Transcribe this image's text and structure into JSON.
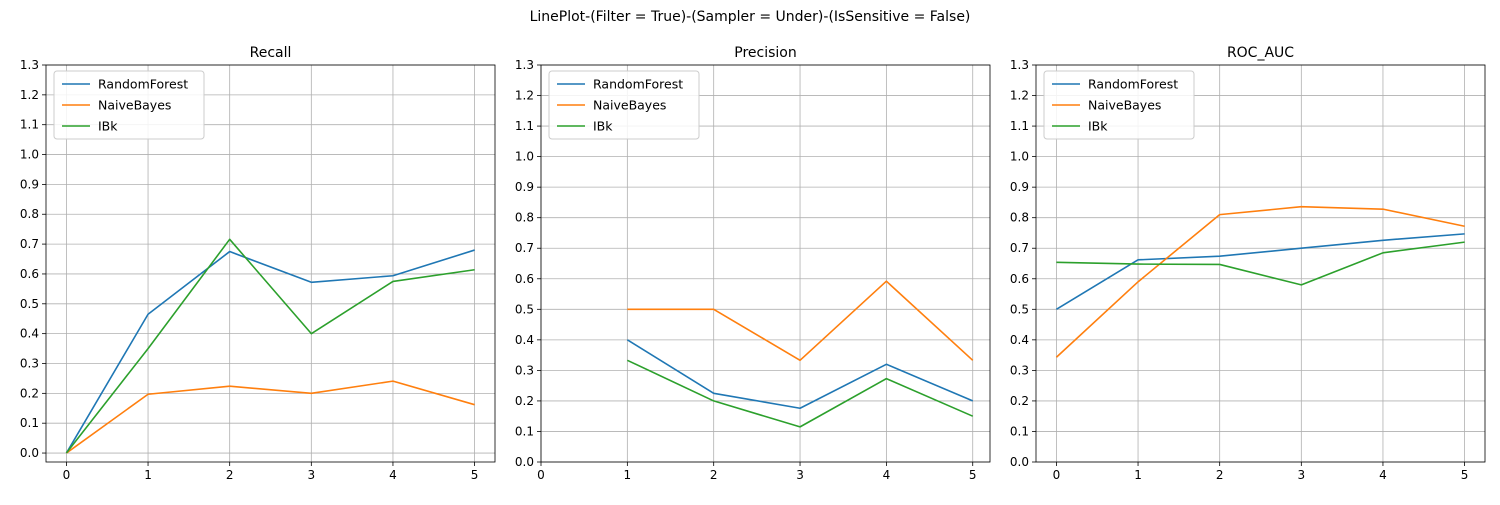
{
  "suptitle": "LinePlot-(Filter = True)-(Sampler = Under)-(IsSensitive = False)",
  "colors": {
    "RandomForest": "#1f77b4",
    "NaiveBayes": "#ff7f0e",
    "IBk": "#2ca02c",
    "grid": "#b0b0b0",
    "axis": "#000000"
  },
  "chart_data": [
    {
      "type": "line",
      "title": "Recall",
      "xlim": [
        -0.25,
        5.25
      ],
      "ylim": [
        -0.03,
        1.3
      ],
      "x_ticks": [
        "0",
        "1",
        "2",
        "3",
        "4",
        "5"
      ],
      "y_ticks": [
        "0.0",
        "0.1",
        "0.2",
        "0.3",
        "0.4",
        "0.5",
        "0.6",
        "0.7",
        "0.8",
        "0.9",
        "1.0",
        "1.1",
        "1.2",
        "1.3"
      ],
      "grid": true,
      "legend": "upper-left",
      "series": [
        {
          "name": "RandomForest",
          "x": [
            0,
            1,
            2,
            3,
            4,
            5
          ],
          "values": [
            0.0,
            0.465,
            0.675,
            0.572,
            0.594,
            0.68
          ]
        },
        {
          "name": "NaiveBayes",
          "x": [
            0,
            1,
            2,
            3,
            4,
            5
          ],
          "values": [
            0.0,
            0.197,
            0.224,
            0.2,
            0.241,
            0.162
          ]
        },
        {
          "name": "IBk",
          "x": [
            0,
            1,
            2,
            3,
            4,
            5
          ],
          "values": [
            0.0,
            0.35,
            0.716,
            0.4,
            0.575,
            0.614
          ]
        }
      ]
    },
    {
      "type": "line",
      "title": "Precision",
      "xlim": [
        0,
        5.2
      ],
      "ylim": [
        0,
        1.3
      ],
      "x_ticks": [
        "0",
        "1",
        "2",
        "3",
        "4",
        "5"
      ],
      "y_ticks": [
        "0.0",
        "0.1",
        "0.2",
        "0.3",
        "0.4",
        "0.5",
        "0.6",
        "0.7",
        "0.8",
        "0.9",
        "1.0",
        "1.1",
        "1.2",
        "1.3"
      ],
      "grid": true,
      "legend": "upper-left",
      "series": [
        {
          "name": "RandomForest",
          "x": [
            1,
            2,
            3,
            4,
            5
          ],
          "values": [
            0.4,
            0.225,
            0.176,
            0.32,
            0.2
          ]
        },
        {
          "name": "NaiveBayes",
          "x": [
            1,
            2,
            3,
            4,
            5
          ],
          "values": [
            0.5,
            0.5,
            0.333,
            0.592,
            0.333
          ]
        },
        {
          "name": "IBk",
          "x": [
            1,
            2,
            3,
            4,
            5
          ],
          "values": [
            0.333,
            0.2,
            0.115,
            0.273,
            0.15
          ]
        }
      ]
    },
    {
      "type": "line",
      "title": "ROC_AUC",
      "xlim": [
        -0.25,
        5.25
      ],
      "ylim": [
        0,
        1.3
      ],
      "x_ticks": [
        "0",
        "1",
        "2",
        "3",
        "4",
        "5"
      ],
      "y_ticks": [
        "0.0",
        "0.1",
        "0.2",
        "0.3",
        "0.4",
        "0.5",
        "0.6",
        "0.7",
        "0.8",
        "0.9",
        "1.0",
        "1.1",
        "1.2",
        "1.3"
      ],
      "grid": true,
      "legend": "upper-left",
      "series": [
        {
          "name": "RandomForest",
          "x": [
            0,
            1,
            2,
            3,
            4,
            5
          ],
          "values": [
            0.5,
            0.662,
            0.674,
            0.7,
            0.726,
            0.747
          ]
        },
        {
          "name": "NaiveBayes",
          "x": [
            0,
            1,
            2,
            3,
            4,
            5
          ],
          "values": [
            0.343,
            0.59,
            0.81,
            0.836,
            0.828,
            0.772
          ]
        },
        {
          "name": "IBk",
          "x": [
            0,
            1,
            2,
            3,
            4,
            5
          ],
          "values": [
            0.654,
            0.648,
            0.647,
            0.58,
            0.685,
            0.72
          ]
        }
      ]
    }
  ]
}
